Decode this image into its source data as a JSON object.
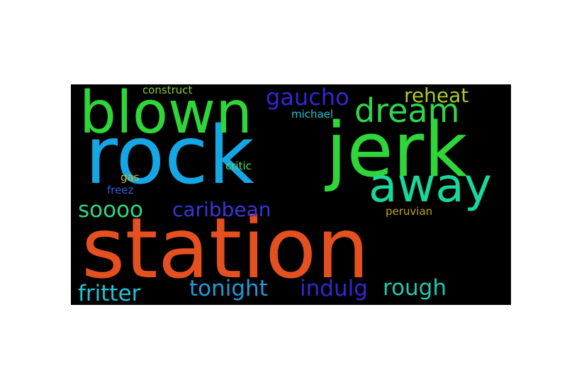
{
  "wordcloud": {
    "background": "#000000",
    "words": [
      {
        "text": "station",
        "color": "#e4501f"
      },
      {
        "text": "rock",
        "color": "#15a6e3"
      },
      {
        "text": "jerk",
        "color": "#2ed63a"
      },
      {
        "text": "blown",
        "color": "#2ed63a"
      },
      {
        "text": "away",
        "color": "#18d89b"
      },
      {
        "text": "dream",
        "color": "#2fd64b"
      },
      {
        "text": "gaucho",
        "color": "#3227d0"
      },
      {
        "text": "reheat",
        "color": "#a9c923"
      },
      {
        "text": "soooo",
        "color": "#2ed680"
      },
      {
        "text": "caribbean",
        "color": "#3a35d8"
      },
      {
        "text": "fritter",
        "color": "#21c4d6"
      },
      {
        "text": "tonight",
        "color": "#1f9ad6"
      },
      {
        "text": "indulg",
        "color": "#3227d0"
      },
      {
        "text": "rough",
        "color": "#25c6b0"
      },
      {
        "text": "construct",
        "color": "#8bd02a"
      },
      {
        "text": "michael",
        "color": "#21c4d6"
      },
      {
        "text": "critic",
        "color": "#52dc55"
      },
      {
        "text": "gas",
        "color": "#c9b91e"
      },
      {
        "text": "freez",
        "color": "#2e5fdf"
      },
      {
        "text": "peruvian",
        "color": "#c4a21a"
      }
    ]
  }
}
